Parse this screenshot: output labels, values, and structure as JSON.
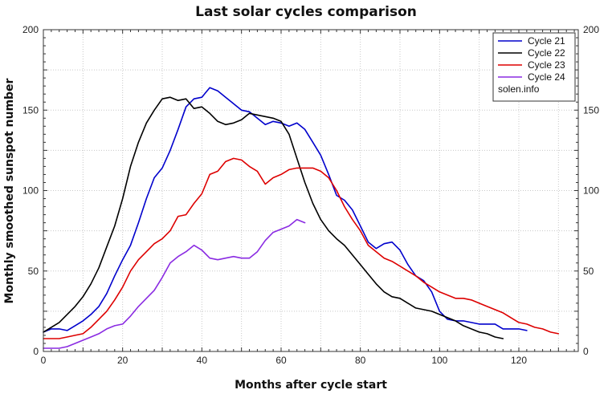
{
  "chart_data": {
    "type": "line",
    "title": "Last solar cycles comparison",
    "xlabel": "Months after cycle start",
    "ylabel": "Monthly smoothed sunspot number",
    "xlim": [
      0,
      135
    ],
    "ylim": [
      0,
      200
    ],
    "x_ticks": [
      0,
      20,
      40,
      60,
      80,
      100,
      120
    ],
    "y_ticks": [
      0,
      50,
      100,
      150,
      200
    ],
    "grid": true,
    "legend_position": "top-right",
    "watermark": "solen.info",
    "series": [
      {
        "name": "Cycle 21",
        "color": "#0000cc",
        "x": [
          0,
          2,
          4,
          6,
          8,
          10,
          12,
          14,
          16,
          18,
          20,
          22,
          24,
          26,
          28,
          30,
          32,
          34,
          36,
          38,
          40,
          42,
          44,
          46,
          48,
          50,
          52,
          54,
          56,
          58,
          60,
          62,
          64,
          66,
          68,
          70,
          72,
          74,
          76,
          78,
          80,
          82,
          84,
          86,
          88,
          90,
          92,
          94,
          96,
          98,
          100,
          102,
          104,
          106,
          108,
          110,
          112,
          114,
          116,
          118,
          120,
          122
        ],
        "values": [
          12,
          14,
          14,
          13,
          16,
          19,
          23,
          28,
          36,
          47,
          57,
          66,
          80,
          95,
          108,
          114,
          125,
          138,
          152,
          157,
          158,
          164,
          162,
          158,
          154,
          150,
          149,
          145,
          141,
          143,
          142,
          140,
          142,
          138,
          130,
          122,
          110,
          97,
          94,
          88,
          78,
          68,
          64,
          67,
          68,
          63,
          54,
          47,
          44,
          37,
          25,
          20,
          19,
          19,
          18,
          17,
          17,
          17,
          14,
          14,
          14,
          13
        ]
      },
      {
        "name": "Cycle 22",
        "color": "#000000",
        "x": [
          0,
          2,
          4,
          6,
          8,
          10,
          12,
          14,
          16,
          18,
          20,
          22,
          24,
          26,
          28,
          30,
          32,
          34,
          36,
          38,
          40,
          42,
          44,
          46,
          48,
          50,
          52,
          54,
          56,
          58,
          60,
          62,
          64,
          66,
          68,
          70,
          72,
          74,
          76,
          78,
          80,
          82,
          84,
          86,
          88,
          90,
          92,
          94,
          96,
          98,
          100,
          102,
          104,
          106,
          108,
          110,
          112,
          114,
          116
        ],
        "values": [
          12,
          15,
          18,
          23,
          28,
          34,
          42,
          52,
          65,
          78,
          95,
          115,
          130,
          142,
          150,
          157,
          158,
          156,
          157,
          151,
          152,
          148,
          143,
          141,
          142,
          144,
          148,
          147,
          146,
          145,
          143,
          135,
          120,
          105,
          92,
          82,
          75,
          70,
          66,
          60,
          54,
          48,
          42,
          37,
          34,
          33,
          30,
          27,
          26,
          25,
          23,
          21,
          19,
          16,
          14,
          12,
          11,
          9,
          8
        ]
      },
      {
        "name": "Cycle 23",
        "color": "#dd0000",
        "x": [
          0,
          2,
          4,
          6,
          8,
          10,
          12,
          14,
          16,
          18,
          20,
          22,
          24,
          26,
          28,
          30,
          32,
          34,
          36,
          38,
          40,
          42,
          44,
          46,
          48,
          50,
          52,
          54,
          56,
          58,
          60,
          62,
          64,
          66,
          68,
          70,
          72,
          74,
          76,
          78,
          80,
          82,
          84,
          86,
          88,
          90,
          92,
          94,
          96,
          98,
          100,
          102,
          104,
          106,
          108,
          110,
          112,
          114,
          116,
          118,
          120,
          122,
          124,
          126,
          128,
          130
        ],
        "values": [
          8,
          8,
          8,
          9,
          10,
          11,
          15,
          20,
          25,
          32,
          40,
          50,
          57,
          62,
          67,
          70,
          75,
          84,
          85,
          92,
          98,
          110,
          112,
          118,
          120,
          119,
          115,
          112,
          104,
          108,
          110,
          113,
          114,
          114,
          114,
          112,
          108,
          100,
          90,
          82,
          75,
          66,
          62,
          58,
          56,
          53,
          50,
          47,
          43,
          40,
          37,
          35,
          33,
          33,
          32,
          30,
          28,
          26,
          24,
          21,
          18,
          17,
          15,
          14,
          12,
          11
        ]
      },
      {
        "name": "Cycle 24",
        "color": "#8a2be2",
        "x": [
          0,
          2,
          4,
          6,
          8,
          10,
          12,
          14,
          16,
          18,
          20,
          22,
          24,
          26,
          28,
          30,
          32,
          34,
          36,
          38,
          40,
          42,
          44,
          46,
          48,
          50,
          52,
          54,
          56,
          58,
          60,
          62,
          64,
          66
        ],
        "values": [
          2,
          2,
          2,
          3,
          5,
          7,
          9,
          11,
          14,
          16,
          17,
          22,
          28,
          33,
          38,
          46,
          55,
          59,
          62,
          66,
          63,
          58,
          57,
          58,
          59,
          58,
          58,
          62,
          69,
          74,
          76,
          78,
          82,
          80
        ]
      }
    ]
  }
}
